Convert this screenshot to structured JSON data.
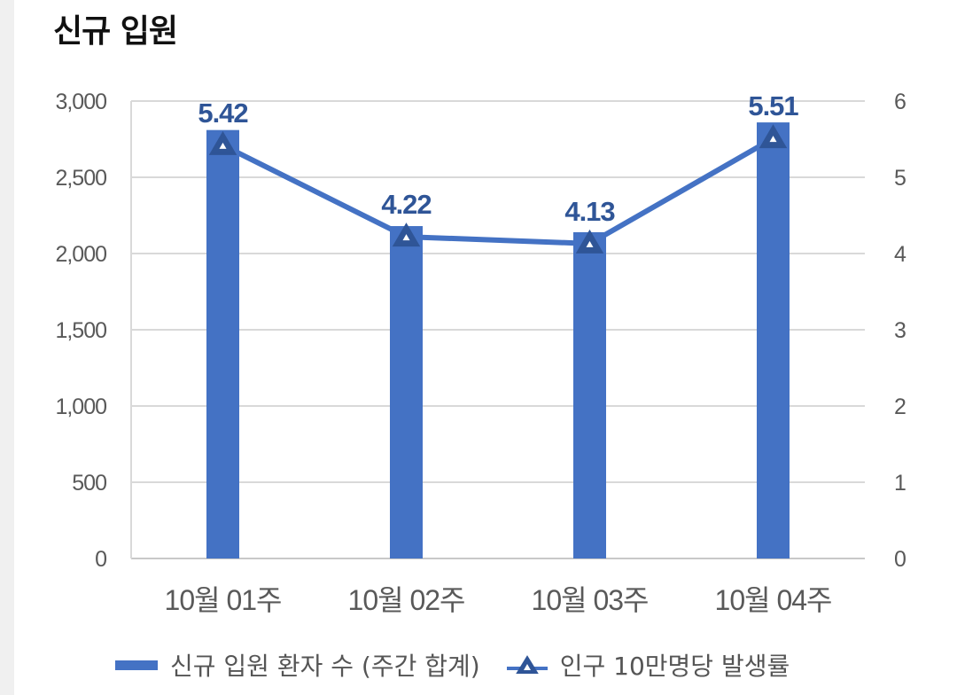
{
  "page": {
    "title": "신규 입원"
  },
  "colors": {
    "bar": "#4472c4",
    "line": "#4472c4",
    "marker": "#2f5597",
    "label": "#2f5597"
  },
  "chart_data": {
    "type": "bar",
    "categories": [
      "10월 01주",
      "10월 02주",
      "10월 03주",
      "10월 04주"
    ],
    "series": [
      {
        "name": "신규 입원 환자 수 (주간 합계)",
        "type": "bar",
        "axis": "left",
        "values": [
          2810,
          2180,
          2140,
          2860
        ]
      },
      {
        "name": "인구 10만명당 발생률",
        "type": "line",
        "axis": "right",
        "values": [
          5.42,
          4.22,
          4.13,
          5.51
        ]
      }
    ],
    "data_labels": [
      "5.42",
      "4.22",
      "4.13",
      "5.51"
    ],
    "y_left": {
      "range": [
        0,
        3000
      ],
      "ticks": [
        "0",
        "500",
        "1,000",
        "1,500",
        "2,000",
        "2,500",
        "3,000"
      ]
    },
    "y_right": {
      "range": [
        0,
        6
      ],
      "ticks": [
        "0",
        "1",
        "2",
        "3",
        "4",
        "5",
        "6"
      ]
    },
    "grid": true,
    "legend_position": "bottom"
  }
}
